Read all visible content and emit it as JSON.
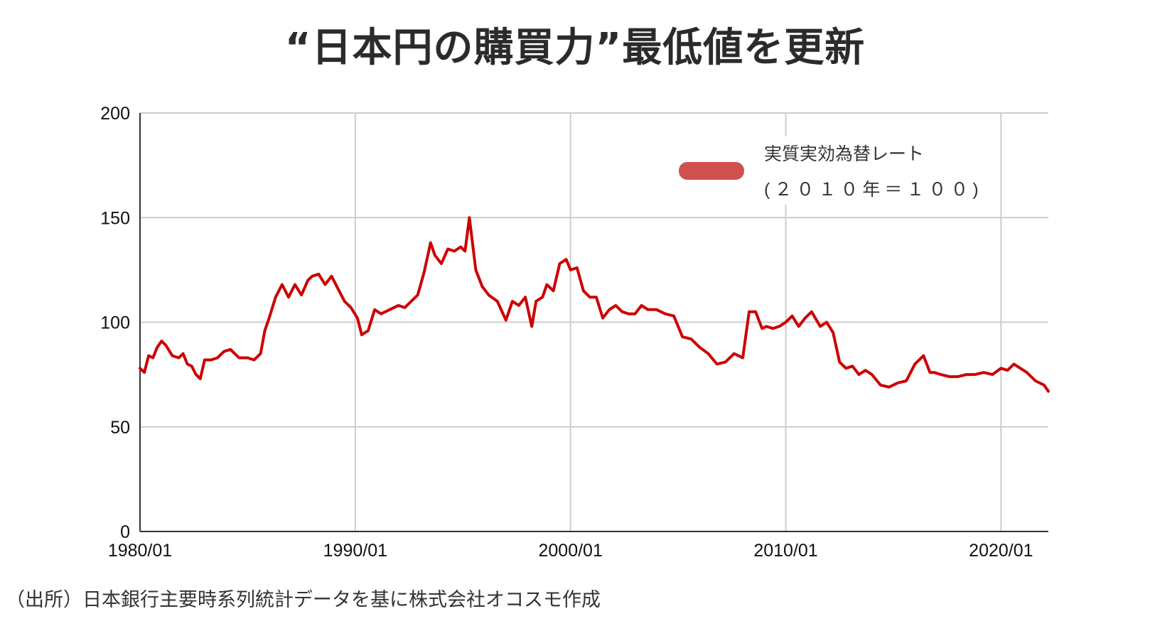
{
  "title": "“日本円の購買力”最低値を更新",
  "source": "（出所）日本銀行主要時系列統計データを基に株式会社オコスモ作成",
  "chart_data": {
    "type": "line",
    "title": "“日本円の購買力”最低値を更新",
    "xlabel": "",
    "ylabel": "",
    "xlim": [
      1980.0,
      2022.2
    ],
    "ylim": [
      0,
      200
    ],
    "y_ticks": [
      0,
      50,
      100,
      150,
      200
    ],
    "x_ticks": [
      {
        "value": 1980,
        "label": "1980/01"
      },
      {
        "value": 1990,
        "label": "1990/01"
      },
      {
        "value": 2000,
        "label": "2000/01"
      },
      {
        "value": 2010,
        "label": "2010/01"
      },
      {
        "value": 2020,
        "label": "2020/01"
      }
    ],
    "grid": true,
    "legend_position": "top-right",
    "series": [
      {
        "name": "実質実効為替レート",
        "name_line2": "(２０１０年＝１００)",
        "color": "#cc0000",
        "legend_color": "#d05050",
        "x": [
          1980.0,
          1980.2,
          1980.4,
          1980.6,
          1980.8,
          1981.0,
          1981.2,
          1981.5,
          1981.8,
          1982.0,
          1982.2,
          1982.4,
          1982.6,
          1982.8,
          1983.0,
          1983.3,
          1983.6,
          1983.9,
          1984.2,
          1984.6,
          1985.0,
          1985.3,
          1985.6,
          1985.8,
          1986.0,
          1986.3,
          1986.6,
          1986.9,
          1987.2,
          1987.5,
          1987.8,
          1988.0,
          1988.3,
          1988.6,
          1988.9,
          1989.2,
          1989.5,
          1989.8,
          1990.1,
          1990.3,
          1990.6,
          1990.9,
          1991.2,
          1991.6,
          1992.0,
          1992.3,
          1992.6,
          1992.9,
          1993.2,
          1993.5,
          1993.7,
          1994.0,
          1994.3,
          1994.6,
          1994.9,
          1995.1,
          1995.3,
          1995.6,
          1995.9,
          1996.2,
          1996.6,
          1997.0,
          1997.3,
          1997.6,
          1997.9,
          1998.2,
          1998.4,
          1998.7,
          1998.9,
          1999.2,
          1999.5,
          1999.8,
          2000.0,
          2000.3,
          2000.6,
          2000.9,
          2001.2,
          2001.5,
          2001.8,
          2002.1,
          2002.4,
          2002.7,
          2003.0,
          2003.3,
          2003.6,
          2004.0,
          2004.4,
          2004.8,
          2005.2,
          2005.6,
          2006.0,
          2006.4,
          2006.8,
          2007.2,
          2007.6,
          2008.0,
          2008.3,
          2008.6,
          2008.9,
          2009.1,
          2009.4,
          2009.7,
          2010.0,
          2010.3,
          2010.6,
          2010.9,
          2011.2,
          2011.6,
          2011.9,
          2012.2,
          2012.5,
          2012.8,
          2013.1,
          2013.4,
          2013.7,
          2014.0,
          2014.4,
          2014.8,
          2015.2,
          2015.6,
          2016.0,
          2016.4,
          2016.7,
          2016.9,
          2017.2,
          2017.6,
          2018.0,
          2018.4,
          2018.8,
          2019.2,
          2019.6,
          2020.0,
          2020.3,
          2020.6,
          2020.9,
          2021.2,
          2021.6,
          2022.0,
          2022.2
        ],
        "values": [
          78,
          76,
          84,
          83,
          88,
          91,
          89,
          84,
          83,
          85,
          80,
          79,
          75,
          73,
          82,
          82,
          83,
          86,
          87,
          83,
          83,
          82,
          85,
          96,
          102,
          112,
          118,
          112,
          118,
          113,
          120,
          122,
          123,
          118,
          122,
          116,
          110,
          107,
          102,
          94,
          96,
          106,
          104,
          106,
          108,
          107,
          110,
          113,
          124,
          138,
          132,
          128,
          135,
          134,
          136,
          134,
          150,
          125,
          117,
          113,
          110,
          101,
          110,
          108,
          112,
          98,
          110,
          112,
          118,
          115,
          128,
          130,
          125,
          126,
          115,
          112,
          112,
          102,
          106,
          108,
          105,
          104,
          104,
          108,
          106,
          106,
          104,
          103,
          93,
          92,
          88,
          85,
          80,
          81,
          85,
          83,
          105,
          105,
          97,
          98,
          97,
          98,
          100,
          103,
          98,
          102,
          105,
          98,
          100,
          95,
          81,
          78,
          79,
          75,
          77,
          75,
          70,
          69,
          71,
          72,
          80,
          84,
          76,
          76,
          75,
          74,
          74,
          75,
          75,
          76,
          75,
          78,
          77,
          80,
          78,
          76,
          72,
          70,
          67
        ]
      }
    ]
  }
}
